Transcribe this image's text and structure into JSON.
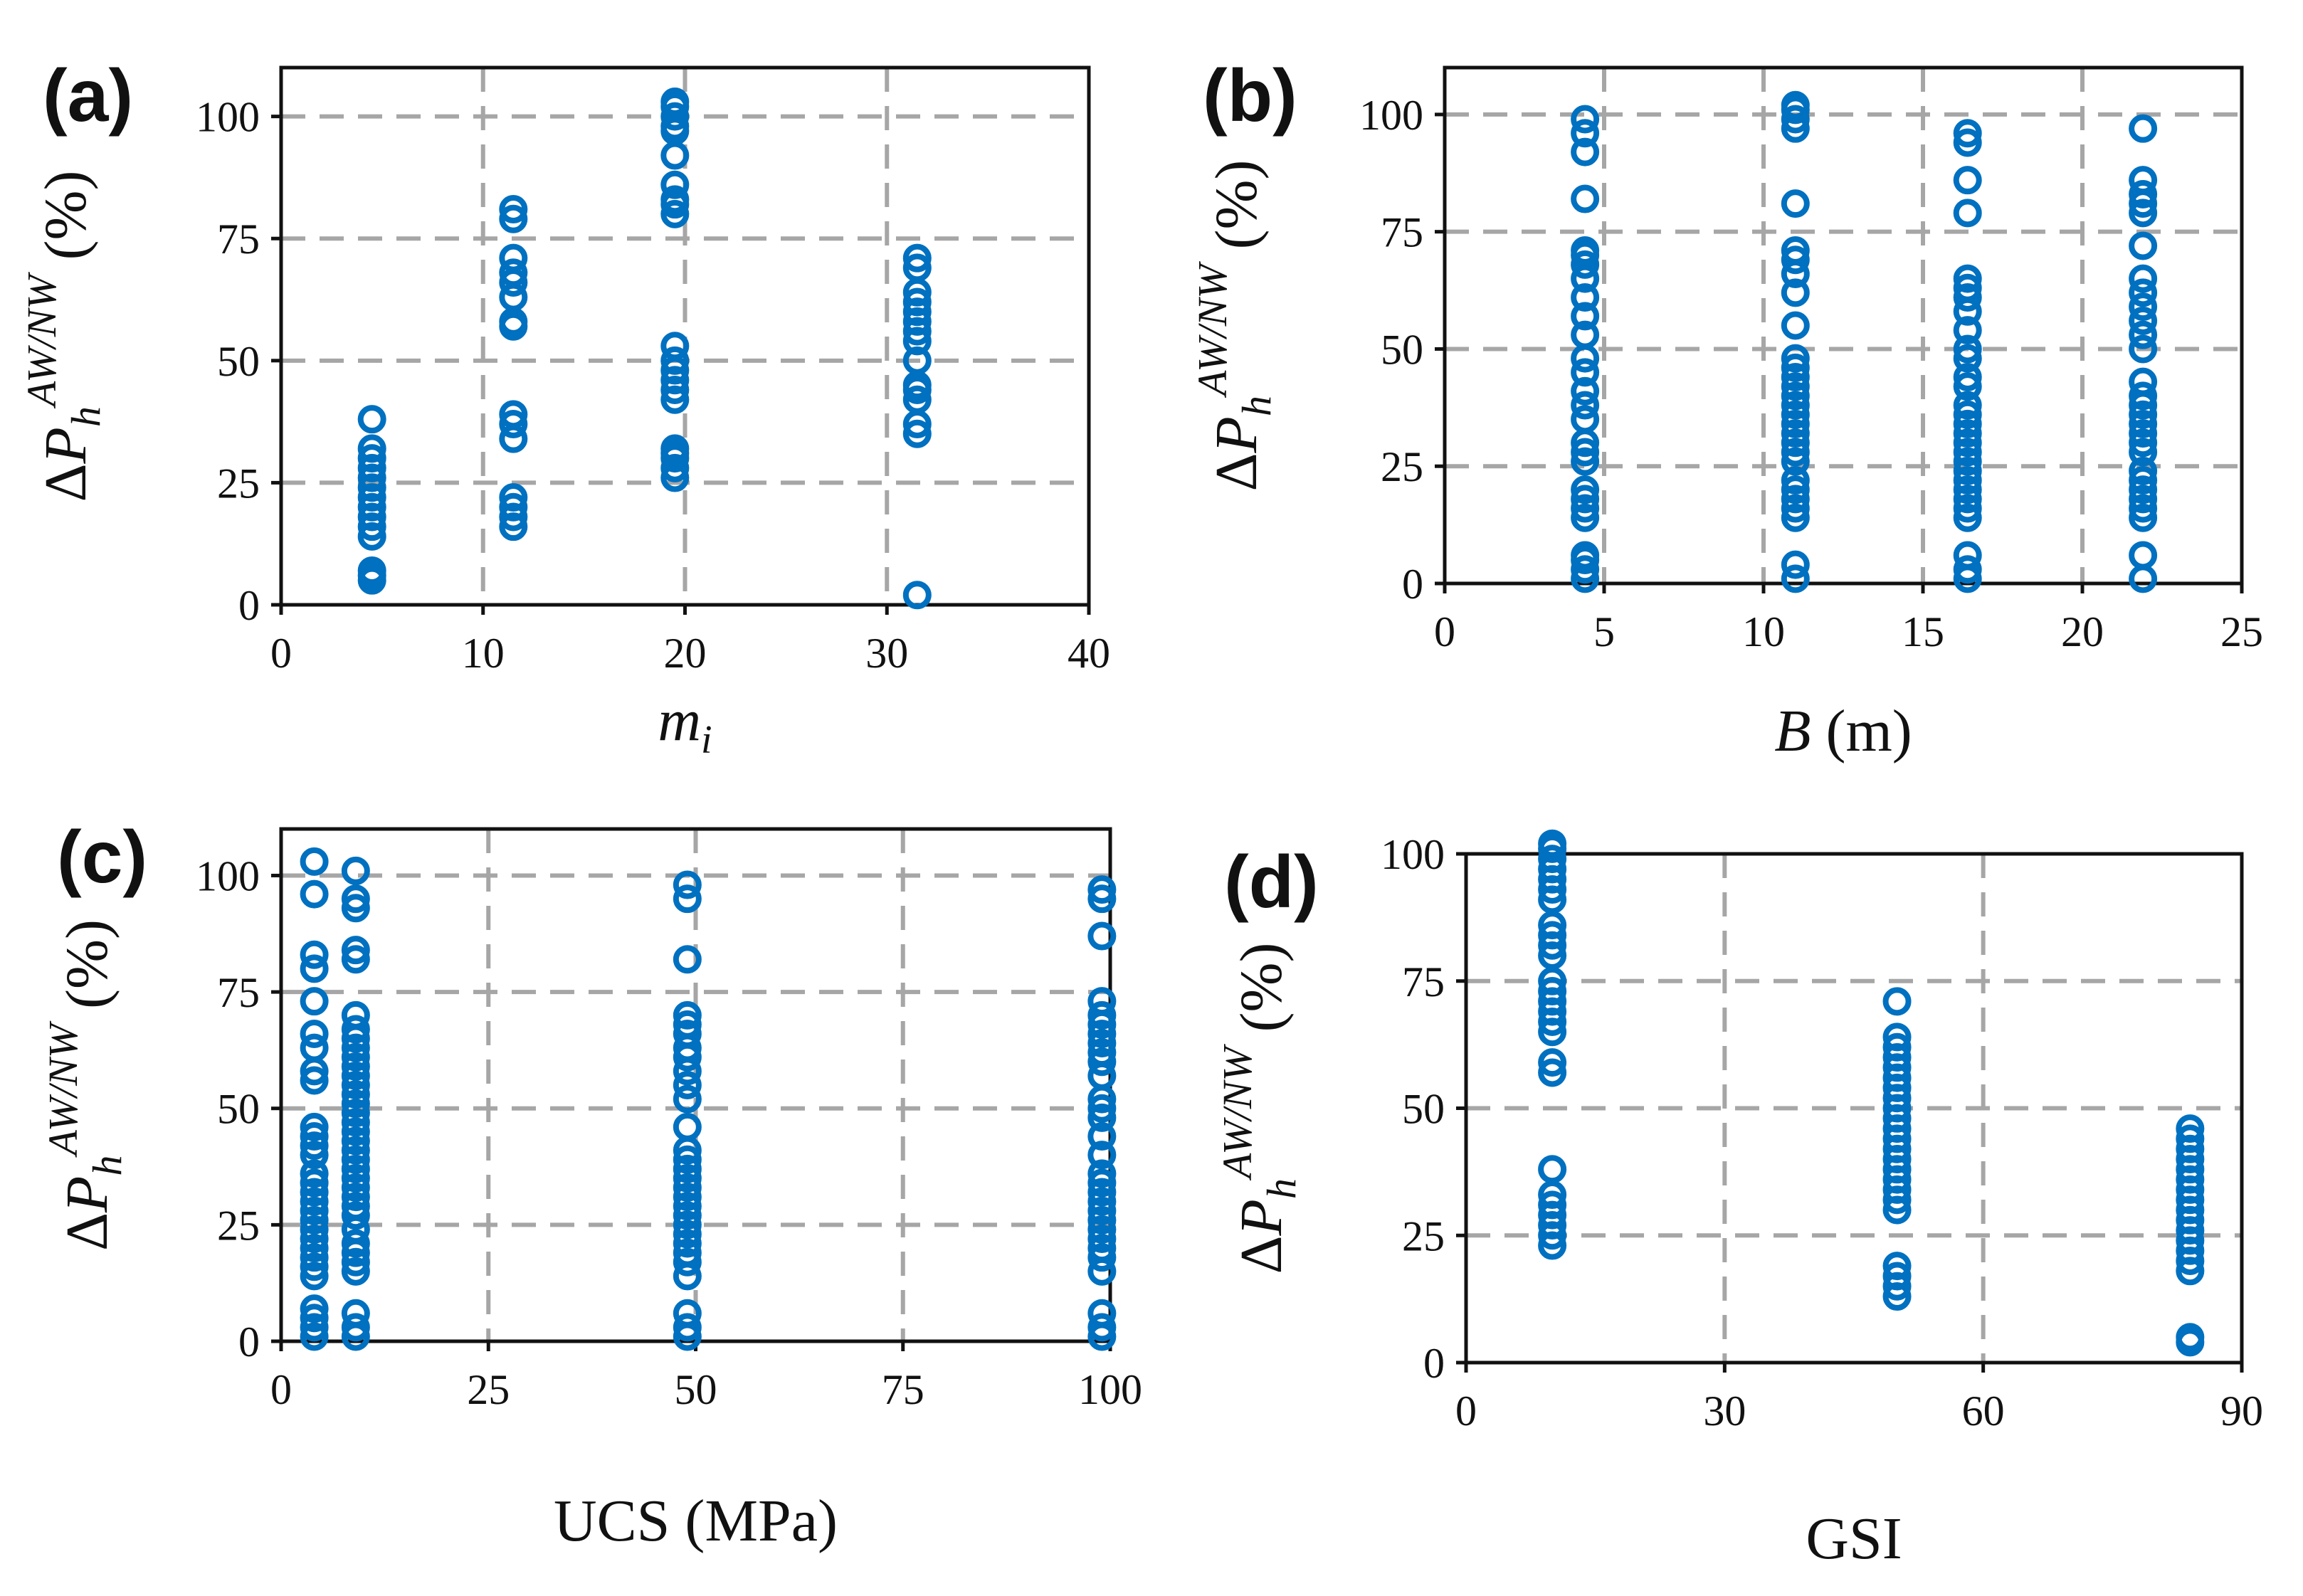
{
  "chart_data": [
    {
      "id": "a",
      "type": "scatter",
      "panel_label": "(a)",
      "x_label_main": "m",
      "x_label_sub": "i",
      "x_label_rest": "",
      "y_label": {
        "delta": "Δ",
        "P": "P",
        "sub": "h",
        "sup": "AW/NW",
        "unit": "(%)"
      },
      "x_ticks": [
        0,
        10,
        20,
        30,
        40
      ],
      "y_ticks": [
        0,
        25,
        50,
        75,
        100
      ],
      "xlim": [
        0,
        40
      ],
      "ylim": [
        0,
        110
      ],
      "color": "#0070C0",
      "series": [
        {
          "x": 4.5,
          "y": [
            5,
            6,
            7,
            14,
            16,
            18,
            20,
            22,
            24,
            26,
            28,
            30,
            32,
            38
          ]
        },
        {
          "x": 11.5,
          "y": [
            16,
            18,
            20,
            22,
            34,
            37,
            39,
            57,
            58,
            63,
            66,
            68,
            71,
            79,
            81
          ]
        },
        {
          "x": 19.5,
          "y": [
            26,
            28,
            30,
            31,
            32,
            42,
            44,
            46,
            48,
            50,
            53,
            80,
            82,
            83,
            86,
            92,
            97,
            98,
            100,
            102,
            103
          ]
        },
        {
          "x": 31.5,
          "y": [
            2,
            35,
            37,
            42,
            44,
            45,
            50,
            54,
            56,
            58,
            60,
            62,
            64,
            69,
            71
          ]
        }
      ]
    },
    {
      "id": "b",
      "type": "scatter",
      "panel_label": "(b)",
      "x_label_main": "B",
      "x_label_sub": "",
      "x_label_rest": " (m)",
      "y_label": {
        "delta": "Δ",
        "P": "P",
        "sub": "h",
        "sup": "AW/NW",
        "unit": "(%)"
      },
      "x_ticks": [
        0,
        5,
        10,
        15,
        20,
        25
      ],
      "y_ticks": [
        0,
        25,
        50,
        75,
        100
      ],
      "xlim": [
        0,
        25
      ],
      "ylim": [
        0,
        110
      ],
      "color": "#0070C0",
      "series": [
        {
          "x": 4.4,
          "y": [
            1,
            3,
            5,
            6,
            14,
            16,
            18,
            20,
            26,
            28,
            30,
            35,
            38,
            41,
            45,
            48,
            53,
            57,
            61,
            65,
            68,
            70,
            71,
            82,
            92,
            96,
            99
          ]
        },
        {
          "x": 11.0,
          "y": [
            1,
            4,
            14,
            16,
            18,
            20,
            22,
            26,
            28,
            30,
            32,
            34,
            36,
            38,
            40,
            42,
            44,
            46,
            48,
            55,
            62,
            66,
            69,
            71,
            81,
            97,
            99,
            101,
            102
          ]
        },
        {
          "x": 16.4,
          "y": [
            1,
            3,
            6,
            14,
            16,
            18,
            20,
            22,
            24,
            26,
            28,
            30,
            32,
            34,
            36,
            38,
            42,
            44,
            48,
            50,
            54,
            58,
            61,
            63,
            65,
            79,
            86,
            94,
            96
          ]
        },
        {
          "x": 21.9,
          "y": [
            1,
            6,
            14,
            16,
            18,
            20,
            22,
            24,
            28,
            30,
            32,
            34,
            36,
            38,
            40,
            43,
            50,
            53,
            56,
            59,
            62,
            65,
            72,
            79,
            81,
            83,
            86,
            97
          ]
        }
      ]
    },
    {
      "id": "c",
      "type": "scatter",
      "panel_label": "(c)",
      "x_label_main": "UCS (MPa)",
      "x_label_sub": "",
      "x_label_rest": "",
      "y_label": {
        "delta": "Δ",
        "P": "P",
        "sub": "h",
        "sup": "AW/NW",
        "unit": "(%)"
      },
      "x_ticks": [
        0,
        25,
        50,
        75,
        100
      ],
      "y_ticks": [
        0,
        25,
        50,
        75,
        100
      ],
      "xlim": [
        0,
        100
      ],
      "ylim": [
        0,
        110
      ],
      "color": "#0070C0",
      "series": [
        {
          "x": 4,
          "y": [
            1,
            3,
            5,
            7,
            14,
            16,
            18,
            20,
            22,
            24,
            26,
            28,
            30,
            32,
            34,
            36,
            40,
            42,
            44,
            46,
            56,
            58,
            63,
            66,
            73,
            80,
            83,
            96,
            103
          ]
        },
        {
          "x": 9,
          "y": [
            1,
            3,
            6,
            15,
            17,
            19,
            21,
            24,
            27,
            29,
            31,
            33,
            35,
            37,
            39,
            41,
            43,
            45,
            47,
            49,
            51,
            53,
            55,
            57,
            59,
            61,
            63,
            65,
            67,
            70,
            82,
            84,
            93,
            95,
            101
          ]
        },
        {
          "x": 49,
          "y": [
            1,
            3,
            6,
            14,
            17,
            19,
            21,
            23,
            25,
            27,
            29,
            31,
            33,
            35,
            37,
            39,
            41,
            46,
            52,
            55,
            58,
            61,
            63,
            66,
            68,
            70,
            82,
            95,
            98
          ]
        },
        {
          "x": 99,
          "y": [
            1,
            3,
            6,
            15,
            18,
            20,
            22,
            24,
            26,
            28,
            30,
            32,
            34,
            36,
            40,
            44,
            48,
            50,
            52,
            57,
            60,
            62,
            64,
            66,
            68,
            70,
            73,
            87,
            95,
            97
          ]
        }
      ]
    },
    {
      "id": "d",
      "type": "scatter",
      "panel_label": "(d)",
      "x_label_main": "GSI",
      "x_label_sub": "",
      "x_label_rest": "",
      "y_label": {
        "delta": "Δ",
        "P": "P",
        "sub": "h",
        "sup": "AW/NW",
        "unit": "(%)"
      },
      "x_ticks": [
        0,
        30,
        60,
        90
      ],
      "y_ticks": [
        0,
        25,
        50,
        75,
        100
      ],
      "xlim": [
        0,
        90
      ],
      "ylim": [
        0,
        100
      ],
      "color": "#0070C0",
      "series": [
        {
          "x": 10,
          "y": [
            23,
            25,
            27,
            29,
            31,
            33,
            38,
            57,
            59,
            65,
            67,
            69,
            71,
            73,
            75,
            80,
            82,
            84,
            86,
            91,
            93,
            95,
            97,
            99,
            101,
            102
          ]
        },
        {
          "x": 50,
          "y": [
            13,
            15,
            17,
            19,
            30,
            32,
            34,
            36,
            38,
            40,
            42,
            44,
            46,
            48,
            50,
            52,
            54,
            56,
            58,
            60,
            62,
            64,
            71
          ]
        },
        {
          "x": 84,
          "y": [
            4,
            5,
            18,
            20,
            22,
            24,
            26,
            28,
            30,
            32,
            34,
            36,
            38,
            40,
            42,
            44,
            46
          ]
        }
      ]
    }
  ]
}
